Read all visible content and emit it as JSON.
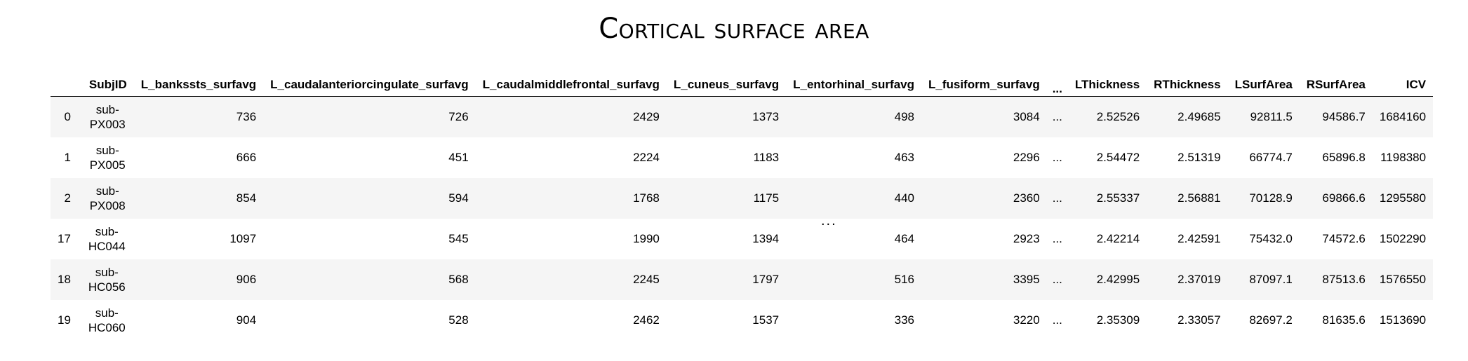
{
  "title": "Cortical surface area",
  "table": {
    "columns": [
      "",
      "SubjID",
      "L_bankssts_surfavg",
      "L_caudalanteriorcingulate_surfavg",
      "L_caudalmiddlefrontal_surfavg",
      "L_cuneus_surfavg",
      "L_entorhinal_surfavg",
      "L_fusiform_surfavg",
      "...",
      "LThickness",
      "RThickness",
      "LSurfArea",
      "RSurfArea",
      "ICV"
    ],
    "rows": [
      {
        "index": "0",
        "subj_line1": "sub-",
        "subj_line2": "PX003",
        "cells": [
          "736",
          "726",
          "2429",
          "1373",
          "498",
          "3084",
          "...",
          "2.52526",
          "2.49685",
          "92811.5",
          "94586.7",
          "1684160"
        ]
      },
      {
        "index": "1",
        "subj_line1": "sub-",
        "subj_line2": "PX005",
        "cells": [
          "666",
          "451",
          "2224",
          "1183",
          "463",
          "2296",
          "...",
          "2.54472",
          "2.51319",
          "66774.7",
          "65896.8",
          "1198380"
        ]
      },
      {
        "index": "2",
        "subj_line1": "sub-",
        "subj_line2": "PX008",
        "cells": [
          "854",
          "594",
          "1768",
          "1175",
          "440",
          "2360",
          "...",
          "2.55337",
          "2.56881",
          "70128.9",
          "69866.6",
          "1295580"
        ]
      },
      {
        "index": "17",
        "subj_line1": "sub-",
        "subj_line2": "HC044",
        "cells": [
          "1097",
          "545",
          "1990",
          "1394",
          "464",
          "2923",
          "...",
          "2.42214",
          "2.42591",
          "75432.0",
          "74572.6",
          "1502290"
        ]
      },
      {
        "index": "18",
        "subj_line1": "sub-",
        "subj_line2": "HC056",
        "cells": [
          "906",
          "568",
          "2245",
          "1797",
          "516",
          "3395",
          "...",
          "2.42995",
          "2.37019",
          "87097.1",
          "87513.6",
          "1576550"
        ]
      },
      {
        "index": "19",
        "subj_line1": "sub-",
        "subj_line2": "HC060",
        "cells": [
          "904",
          "528",
          "2462",
          "1537",
          "336",
          "3220",
          "...",
          "2.35309",
          "2.33057",
          "82697.2",
          "81635.6",
          "1513690"
        ]
      }
    ],
    "row_ellipsis": "..."
  }
}
